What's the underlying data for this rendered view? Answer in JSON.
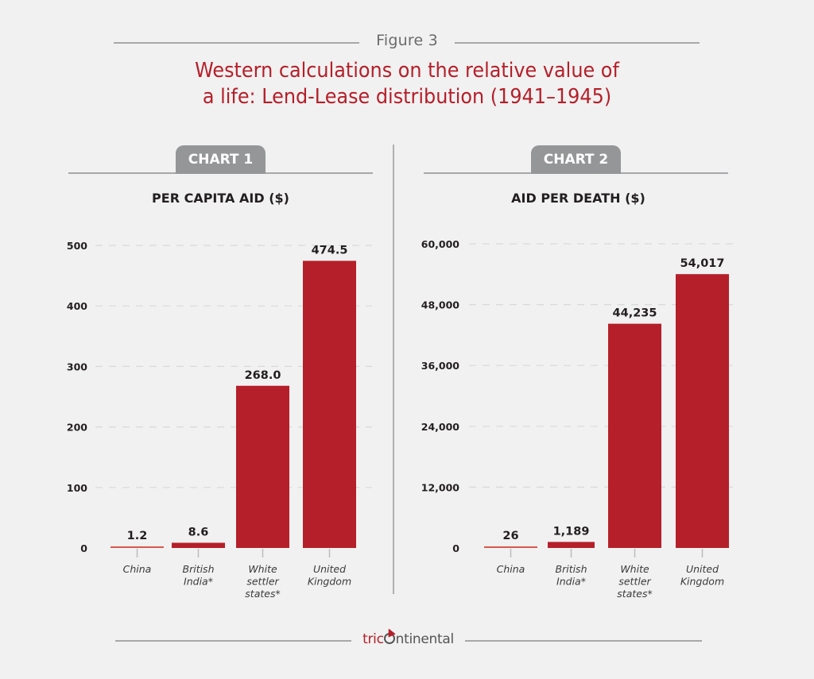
{
  "header": {
    "figure_label": "Figure 3",
    "title_line1": "Western calculations on the relative value of",
    "title_line2": "a life: Lend-Lease distribution (1941–1945)"
  },
  "colors": {
    "bar": "#B51F29",
    "bar_small": "#D9574B",
    "title": "#B51F29",
    "background": "#F1F1F1",
    "tab": "#959698",
    "rule": "#A7A8AA"
  },
  "footer": {
    "logo_text_brand": "tric",
    "logo_text_rest": "ntinental",
    "logo_full": "tricontinental",
    "logo_icon": "flag-o-icon"
  },
  "chart_data": [
    {
      "type": "bar",
      "tab_label": "CHART 1",
      "title": "PER CAPITA AID ($)",
      "xlabel": "",
      "ylabel": "",
      "categories": [
        [
          "China"
        ],
        [
          "British",
          "India*"
        ],
        [
          "White",
          "settler",
          "states*"
        ],
        [
          "United",
          "Kingdom"
        ]
      ],
      "values": [
        1.2,
        8.6,
        268.0,
        474.5
      ],
      "value_labels": [
        "1.2",
        "8.6",
        "268.0",
        "474.5"
      ],
      "ylim": [
        0,
        500
      ],
      "yticks": [
        0,
        100,
        200,
        300,
        400,
        500
      ],
      "ytick_labels": [
        "0",
        "100",
        "200",
        "300",
        "400",
        "500"
      ],
      "grid": true
    },
    {
      "type": "bar",
      "tab_label": "CHART 2",
      "title": "AID PER DEATH ($)",
      "xlabel": "",
      "ylabel": "",
      "categories": [
        [
          "China"
        ],
        [
          "British",
          "India*"
        ],
        [
          "White",
          "settler",
          "states*"
        ],
        [
          "United",
          "Kingdom"
        ]
      ],
      "values": [
        26,
        1189,
        44235,
        54017
      ],
      "value_labels": [
        "26",
        "1,189",
        "44,235",
        "54,017"
      ],
      "ylim": [
        0,
        60000
      ],
      "yticks": [
        0,
        12000,
        24000,
        36000,
        48000,
        60000
      ],
      "ytick_labels": [
        "0",
        "12,000",
        "24,000",
        "36,000",
        "48,000",
        "60,000"
      ],
      "grid": true
    }
  ]
}
